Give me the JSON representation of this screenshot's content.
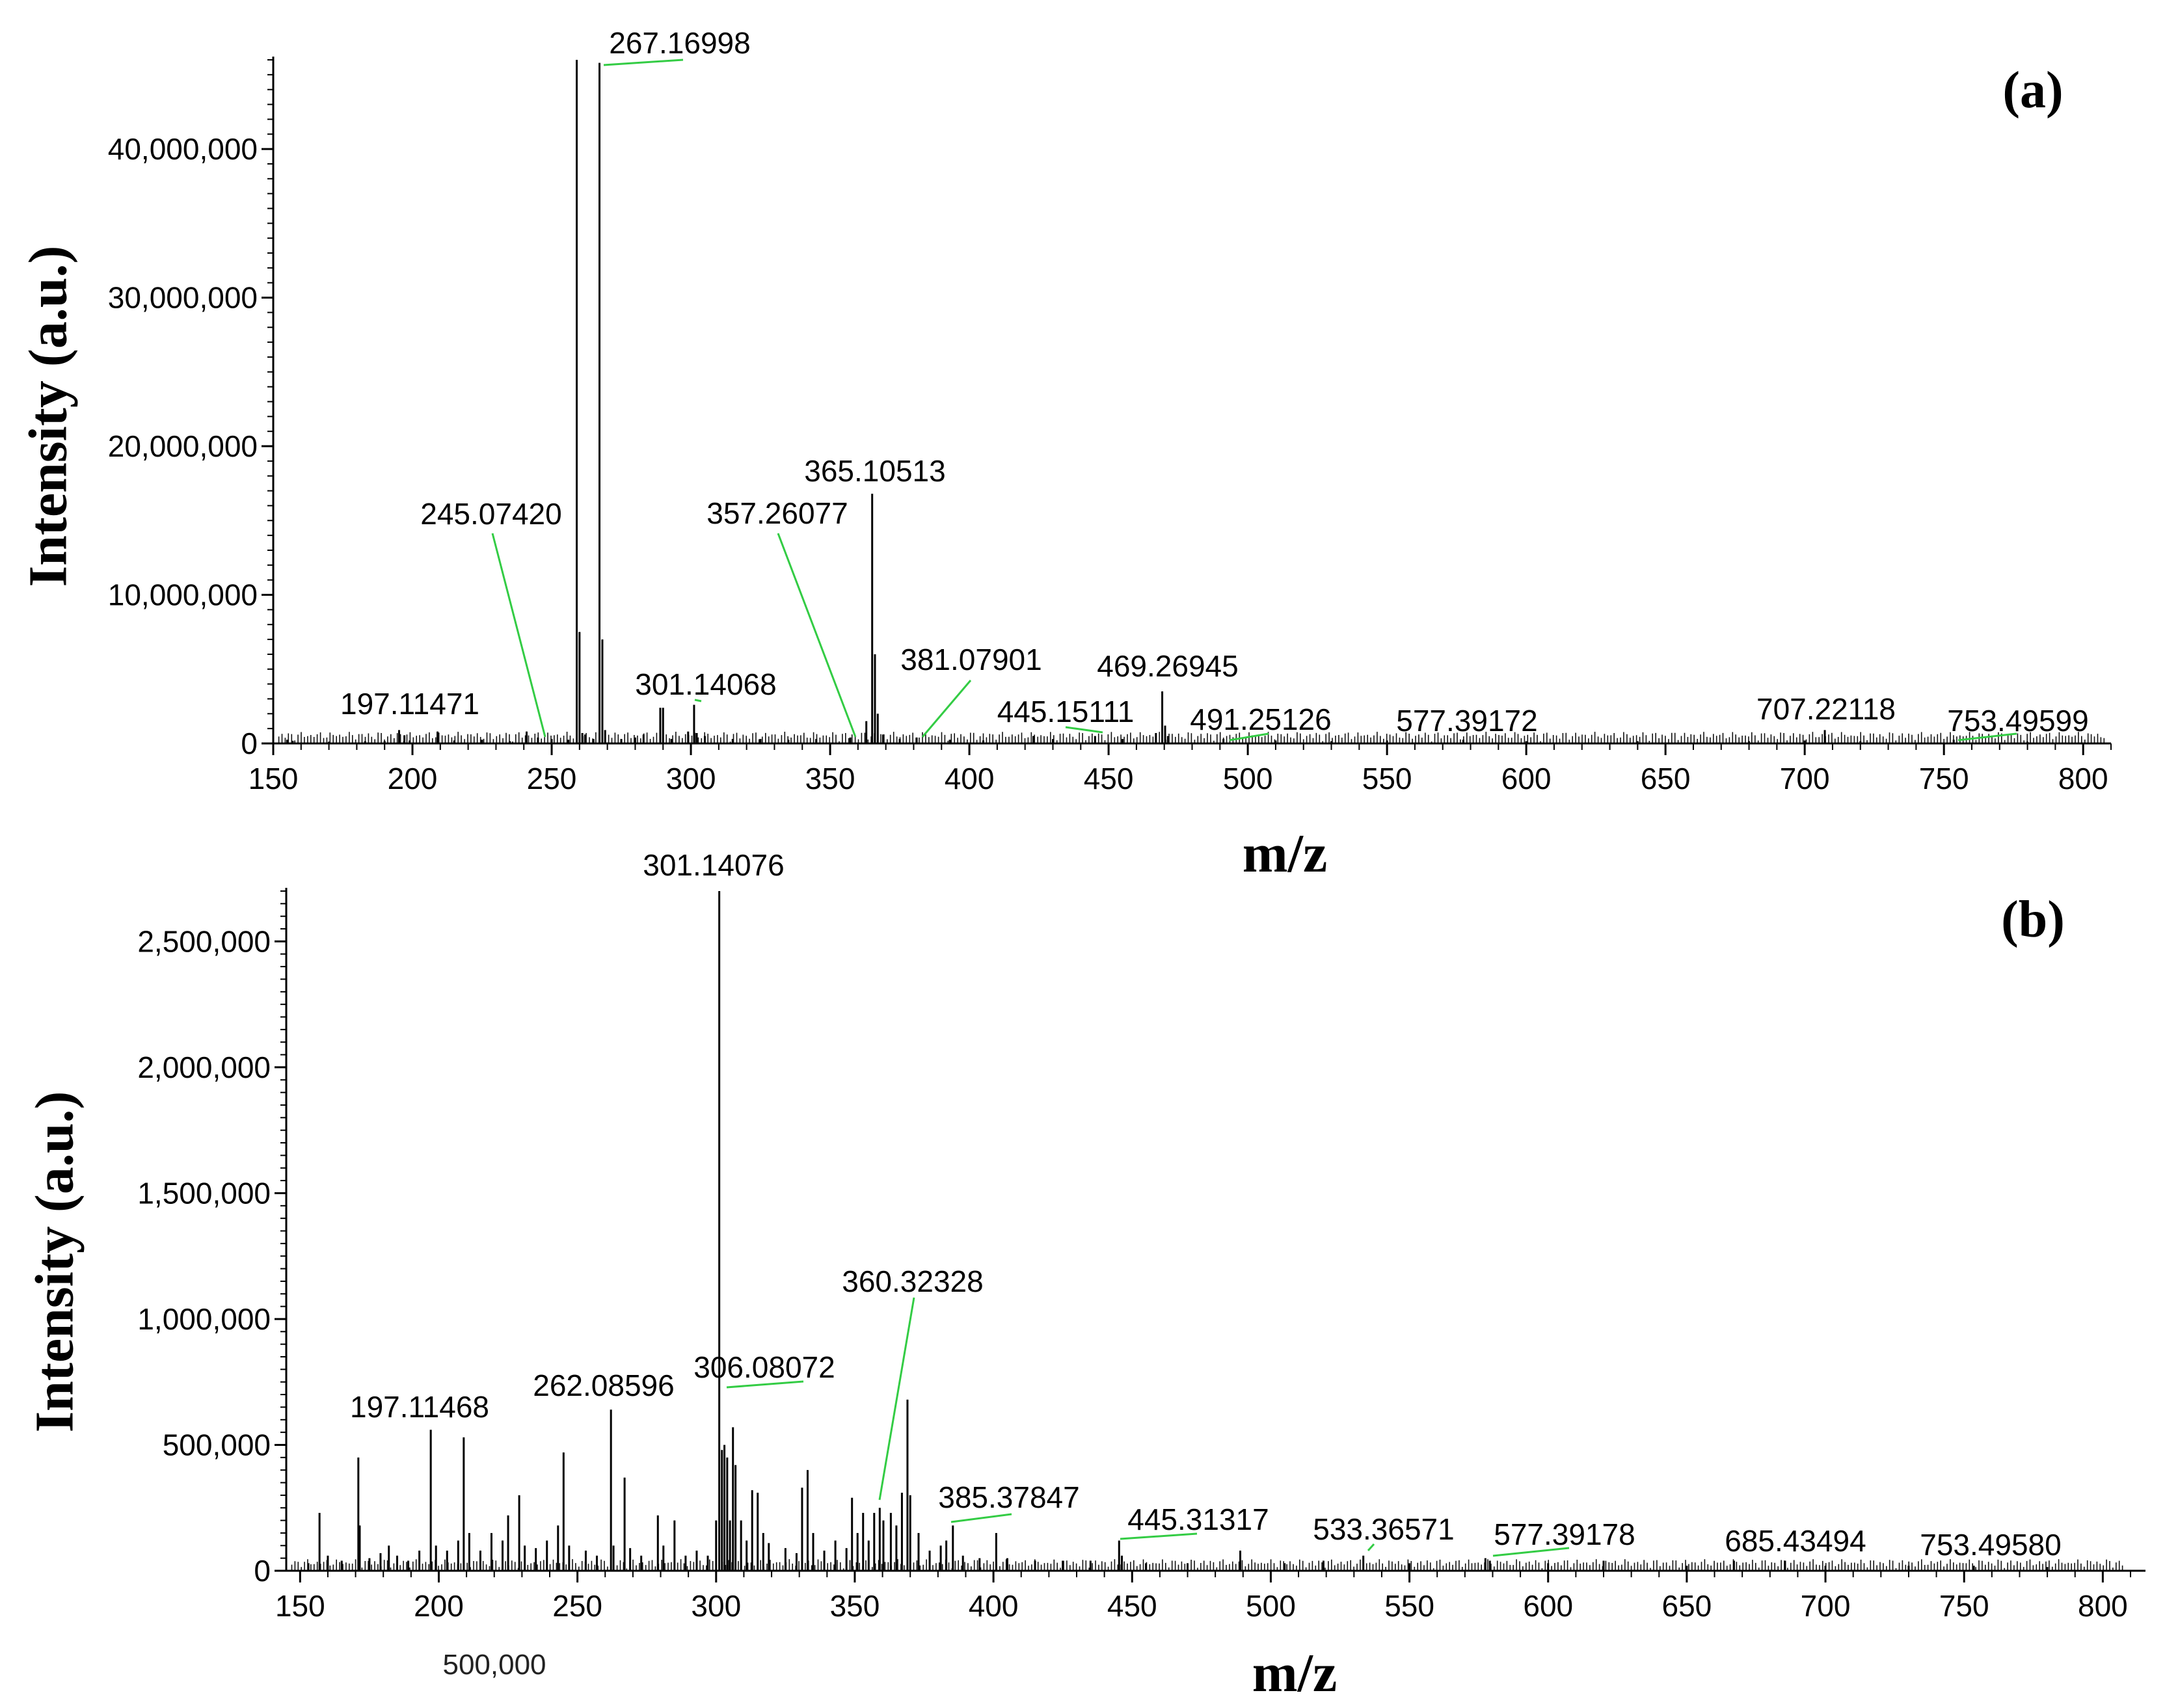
{
  "chart_data": [
    {
      "type": "line",
      "panel_label": "(a)",
      "xlabel": "m/z",
      "ylabel": "Intensity (a.u.)",
      "xlim": [
        150,
        810
      ],
      "ylim": [
        0,
        46000000
      ],
      "xticks": [
        150,
        200,
        250,
        300,
        350,
        400,
        450,
        500,
        550,
        600,
        650,
        700,
        750,
        800
      ],
      "yticks": [
        0,
        10000000,
        20000000,
        30000000,
        40000000
      ],
      "ytick_labels": [
        "0",
        "10,000,000",
        "20,000,000",
        "30,000,000",
        "40,000,000"
      ],
      "peaks": [
        {
          "mz": 155.0,
          "i": 250000
        },
        {
          "mz": 157.0,
          "i": 180000
        },
        {
          "mz": 170.0,
          "i": 120000
        },
        {
          "mz": 183.0,
          "i": 150000
        },
        {
          "mz": 190.0,
          "i": 160000
        },
        {
          "mz": 195.2,
          "i": 900000
        },
        {
          "mz": 197.11,
          "i": 550000
        },
        {
          "mz": 199.0,
          "i": 200000
        },
        {
          "mz": 209.0,
          "i": 800000
        },
        {
          "mz": 215.0,
          "i": 200000
        },
        {
          "mz": 225.0,
          "i": 250000
        },
        {
          "mz": 235.0,
          "i": 150000
        },
        {
          "mz": 241.0,
          "i": 800000
        },
        {
          "mz": 245.07,
          "i": 400000
        },
        {
          "mz": 250.0,
          "i": 300000
        },
        {
          "mz": 256.0,
          "i": 250000
        },
        {
          "mz": 259.0,
          "i": 46000000
        },
        {
          "mz": 260.0,
          "i": 7500000
        },
        {
          "mz": 261.0,
          "i": 700000
        },
        {
          "mz": 262.0,
          "i": 600000
        },
        {
          "mz": 265.0,
          "i": 300000
        },
        {
          "mz": 267.17,
          "i": 45800000
        },
        {
          "mz": 268.2,
          "i": 7000000
        },
        {
          "mz": 269.2,
          "i": 900000
        },
        {
          "mz": 275.0,
          "i": 300000
        },
        {
          "mz": 280.0,
          "i": 400000
        },
        {
          "mz": 283.0,
          "i": 600000
        },
        {
          "mz": 289.0,
          "i": 2400000
        },
        {
          "mz": 290.0,
          "i": 2400000
        },
        {
          "mz": 293.0,
          "i": 300000
        },
        {
          "mz": 299.0,
          "i": 800000
        },
        {
          "mz": 301.14,
          "i": 2600000
        },
        {
          "mz": 302.1,
          "i": 700000
        },
        {
          "mz": 305.0,
          "i": 500000
        },
        {
          "mz": 315.0,
          "i": 300000
        },
        {
          "mz": 325.0,
          "i": 300000
        },
        {
          "mz": 335.0,
          "i": 250000
        },
        {
          "mz": 345.0,
          "i": 300000
        },
        {
          "mz": 357.26,
          "i": 400000
        },
        {
          "mz": 363.0,
          "i": 1500000
        },
        {
          "mz": 365.1,
          "i": 16800000
        },
        {
          "mz": 366.1,
          "i": 6000000
        },
        {
          "mz": 367.1,
          "i": 2000000
        },
        {
          "mz": 369.0,
          "i": 600000
        },
        {
          "mz": 375.0,
          "i": 300000
        },
        {
          "mz": 381.08,
          "i": 400000
        },
        {
          "mz": 393.0,
          "i": 250000
        },
        {
          "mz": 405.0,
          "i": 200000
        },
        {
          "mz": 423.0,
          "i": 500000
        },
        {
          "mz": 430.0,
          "i": 300000
        },
        {
          "mz": 445.15,
          "i": 500000
        },
        {
          "mz": 455.0,
          "i": 300000
        },
        {
          "mz": 467.0,
          "i": 700000
        },
        {
          "mz": 469.27,
          "i": 3500000
        },
        {
          "mz": 470.3,
          "i": 1200000
        },
        {
          "mz": 471.3,
          "i": 500000
        },
        {
          "mz": 491.25,
          "i": 300000
        },
        {
          "mz": 510.0,
          "i": 200000
        },
        {
          "mz": 530.0,
          "i": 150000
        },
        {
          "mz": 550.0,
          "i": 200000
        },
        {
          "mz": 577.39,
          "i": 250000
        },
        {
          "mz": 600.0,
          "i": 150000
        },
        {
          "mz": 640.0,
          "i": 150000
        },
        {
          "mz": 680.0,
          "i": 150000
        },
        {
          "mz": 700.0,
          "i": 200000
        },
        {
          "mz": 707.22,
          "i": 900000
        },
        {
          "mz": 720.0,
          "i": 150000
        },
        {
          "mz": 753.5,
          "i": 250000
        },
        {
          "mz": 780.0,
          "i": 120000
        }
      ],
      "annotations": [
        {
          "text": "267.16998",
          "peak_mz": 267.17,
          "peak_i": 45800000
        },
        {
          "text": "245.07420",
          "peak_mz": 245.07,
          "peak_i": 400000
        },
        {
          "text": "197.11471",
          "peak_mz": 197.11,
          "peak_i": 550000
        },
        {
          "text": "301.14068",
          "peak_mz": 301.14,
          "peak_i": 2600000
        },
        {
          "text": "365.10513",
          "peak_mz": 365.1,
          "peak_i": 16800000
        },
        {
          "text": "357.26077",
          "peak_mz": 357.26,
          "peak_i": 400000
        },
        {
          "text": "381.07901",
          "peak_mz": 381.08,
          "peak_i": 400000
        },
        {
          "text": "445.15111",
          "peak_mz": 445.15,
          "peak_i": 500000
        },
        {
          "text": "469.26945",
          "peak_mz": 469.27,
          "peak_i": 3500000
        },
        {
          "text": "491.25126",
          "peak_mz": 491.25,
          "peak_i": 300000
        },
        {
          "text": "577.39172",
          "peak_mz": 577.39,
          "peak_i": 250000
        },
        {
          "text": "707.22118",
          "peak_mz": 707.22,
          "peak_i": 900000
        },
        {
          "text": "753.49599",
          "peak_mz": 753.5,
          "peak_i": 250000
        }
      ]
    },
    {
      "type": "line",
      "panel_label": "(b)",
      "xlabel": "m/z",
      "ylabel": "Intensity (a.u.)",
      "stray_label": "500,000",
      "xlim": [
        145,
        810
      ],
      "ylim": [
        0,
        2700000
      ],
      "xticks": [
        150,
        200,
        250,
        300,
        350,
        400,
        450,
        500,
        550,
        600,
        650,
        700,
        750,
        800
      ],
      "yticks": [
        0,
        500000,
        1000000,
        1500000,
        2000000,
        2500000
      ],
      "ytick_labels": [
        "0",
        "500,000",
        "1,000,000",
        "1,500,000",
        "2,000,000",
        "2,500,000"
      ],
      "peaks": [
        {
          "mz": 153.0,
          "i": 30000
        },
        {
          "mz": 157.0,
          "i": 230000
        },
        {
          "mz": 160.0,
          "i": 60000
        },
        {
          "mz": 165.0,
          "i": 40000
        },
        {
          "mz": 171.0,
          "i": 450000
        },
        {
          "mz": 171.5,
          "i": 180000
        },
        {
          "mz": 175.0,
          "i": 50000
        },
        {
          "mz": 179.0,
          "i": 70000
        },
        {
          "mz": 182.0,
          "i": 100000
        },
        {
          "mz": 185.0,
          "i": 60000
        },
        {
          "mz": 189.0,
          "i": 40000
        },
        {
          "mz": 193.0,
          "i": 80000
        },
        {
          "mz": 197.11,
          "i": 560000
        },
        {
          "mz": 199.0,
          "i": 100000
        },
        {
          "mz": 203.0,
          "i": 80000
        },
        {
          "mz": 207.0,
          "i": 120000
        },
        {
          "mz": 209.0,
          "i": 530000
        },
        {
          "mz": 211.0,
          "i": 150000
        },
        {
          "mz": 215.0,
          "i": 80000
        },
        {
          "mz": 219.0,
          "i": 150000
        },
        {
          "mz": 223.0,
          "i": 120000
        },
        {
          "mz": 225.0,
          "i": 220000
        },
        {
          "mz": 229.0,
          "i": 300000
        },
        {
          "mz": 231.0,
          "i": 100000
        },
        {
          "mz": 235.0,
          "i": 90000
        },
        {
          "mz": 239.0,
          "i": 120000
        },
        {
          "mz": 243.0,
          "i": 180000
        },
        {
          "mz": 245.0,
          "i": 470000
        },
        {
          "mz": 247.0,
          "i": 100000
        },
        {
          "mz": 253.0,
          "i": 80000
        },
        {
          "mz": 257.0,
          "i": 60000
        },
        {
          "mz": 262.09,
          "i": 640000
        },
        {
          "mz": 263.0,
          "i": 100000
        },
        {
          "mz": 267.0,
          "i": 370000
        },
        {
          "mz": 269.0,
          "i": 90000
        },
        {
          "mz": 273.0,
          "i": 60000
        },
        {
          "mz": 279.0,
          "i": 220000
        },
        {
          "mz": 281.0,
          "i": 100000
        },
        {
          "mz": 285.0,
          "i": 200000
        },
        {
          "mz": 289.0,
          "i": 60000
        },
        {
          "mz": 293.0,
          "i": 80000
        },
        {
          "mz": 297.0,
          "i": 60000
        },
        {
          "mz": 300.0,
          "i": 200000
        },
        {
          "mz": 301.14,
          "i": 2700000
        },
        {
          "mz": 302.1,
          "i": 480000
        },
        {
          "mz": 303.0,
          "i": 500000
        },
        {
          "mz": 304.0,
          "i": 450000
        },
        {
          "mz": 305.0,
          "i": 200000
        },
        {
          "mz": 306.08,
          "i": 570000
        },
        {
          "mz": 307.0,
          "i": 420000
        },
        {
          "mz": 309.0,
          "i": 200000
        },
        {
          "mz": 311.0,
          "i": 120000
        },
        {
          "mz": 313.0,
          "i": 320000
        },
        {
          "mz": 315.0,
          "i": 310000
        },
        {
          "mz": 317.0,
          "i": 150000
        },
        {
          "mz": 319.0,
          "i": 110000
        },
        {
          "mz": 325.0,
          "i": 90000
        },
        {
          "mz": 329.0,
          "i": 70000
        },
        {
          "mz": 331.0,
          "i": 330000
        },
        {
          "mz": 333.0,
          "i": 400000
        },
        {
          "mz": 335.0,
          "i": 150000
        },
        {
          "mz": 339.0,
          "i": 80000
        },
        {
          "mz": 343.0,
          "i": 120000
        },
        {
          "mz": 347.0,
          "i": 90000
        },
        {
          "mz": 349.0,
          "i": 290000
        },
        {
          "mz": 351.0,
          "i": 150000
        },
        {
          "mz": 353.0,
          "i": 230000
        },
        {
          "mz": 355.0,
          "i": 120000
        },
        {
          "mz": 357.0,
          "i": 230000
        },
        {
          "mz": 359.0,
          "i": 250000
        },
        {
          "mz": 360.32,
          "i": 200000
        },
        {
          "mz": 363.0,
          "i": 230000
        },
        {
          "mz": 365.0,
          "i": 180000
        },
        {
          "mz": 367.0,
          "i": 310000
        },
        {
          "mz": 369.0,
          "i": 680000
        },
        {
          "mz": 370.0,
          "i": 300000
        },
        {
          "mz": 373.0,
          "i": 150000
        },
        {
          "mz": 377.0,
          "i": 80000
        },
        {
          "mz": 381.0,
          "i": 100000
        },
        {
          "mz": 383.0,
          "i": 120000
        },
        {
          "mz": 385.38,
          "i": 180000
        },
        {
          "mz": 389.0,
          "i": 60000
        },
        {
          "mz": 395.0,
          "i": 50000
        },
        {
          "mz": 401.0,
          "i": 150000
        },
        {
          "mz": 405.0,
          "i": 50000
        },
        {
          "mz": 415.0,
          "i": 40000
        },
        {
          "mz": 425.0,
          "i": 40000
        },
        {
          "mz": 435.0,
          "i": 40000
        },
        {
          "mz": 445.31,
          "i": 120000
        },
        {
          "mz": 446.3,
          "i": 60000
        },
        {
          "mz": 455.0,
          "i": 30000
        },
        {
          "mz": 470.0,
          "i": 30000
        },
        {
          "mz": 489.0,
          "i": 80000
        },
        {
          "mz": 505.0,
          "i": 30000
        },
        {
          "mz": 519.0,
          "i": 40000
        },
        {
          "mz": 533.37,
          "i": 60000
        },
        {
          "mz": 550.0,
          "i": 30000
        },
        {
          "mz": 577.39,
          "i": 50000
        },
        {
          "mz": 579.0,
          "i": 40000
        },
        {
          "mz": 600.0,
          "i": 30000
        },
        {
          "mz": 620.0,
          "i": 40000
        },
        {
          "mz": 650.0,
          "i": 20000
        },
        {
          "mz": 667.0,
          "i": 40000
        },
        {
          "mz": 685.43,
          "i": 40000
        },
        {
          "mz": 700.0,
          "i": 20000
        },
        {
          "mz": 730.0,
          "i": 20000
        },
        {
          "mz": 753.5,
          "i": 20000
        },
        {
          "mz": 780.0,
          "i": 15000
        }
      ],
      "annotations": [
        {
          "text": "301.14076",
          "peak_mz": 301.14,
          "peak_i": 2700000
        },
        {
          "text": "197.11468",
          "peak_mz": 197.11,
          "peak_i": 560000
        },
        {
          "text": "262.08596",
          "peak_mz": 262.09,
          "peak_i": 640000
        },
        {
          "text": "360.32328",
          "peak_mz": 360.32,
          "peak_i": 200000
        },
        {
          "text": "306.08072",
          "peak_mz": 306.08,
          "peak_i": 570000
        },
        {
          "text": "385.37847",
          "peak_mz": 385.38,
          "peak_i": 180000
        },
        {
          "text": "445.31317",
          "peak_mz": 445.31,
          "peak_i": 120000
        },
        {
          "text": "533.36571",
          "peak_mz": 533.37,
          "peak_i": 60000
        },
        {
          "text": "577.39178",
          "peak_mz": 577.39,
          "peak_i": 50000
        },
        {
          "text": "685.43494",
          "peak_mz": 685.43,
          "peak_i": 40000
        },
        {
          "text": "753.49580",
          "peak_mz": 753.5,
          "peak_i": 20000
        }
      ]
    }
  ]
}
